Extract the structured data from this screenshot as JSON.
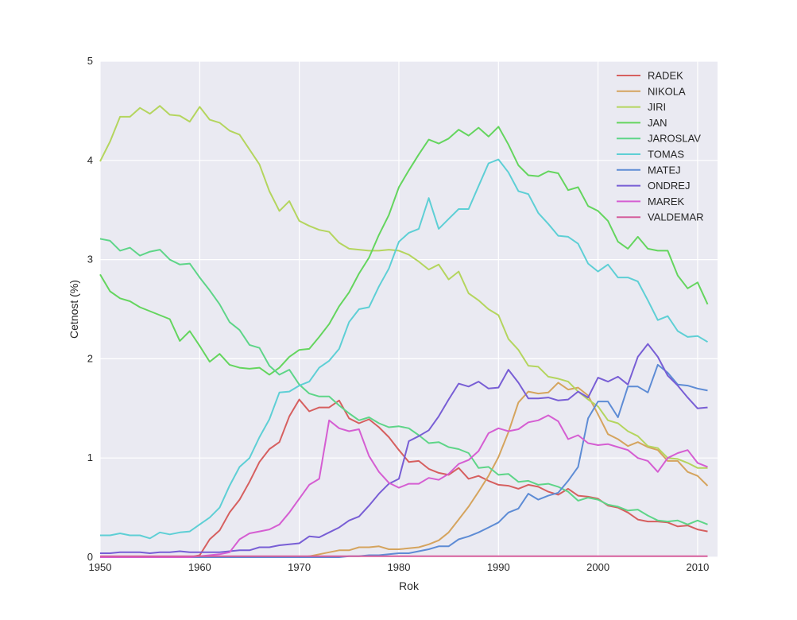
{
  "chart_data": {
    "type": "line",
    "title": "",
    "xlabel": "Rok",
    "ylabel": "Cetnost (%)",
    "xlim": [
      1950,
      2012
    ],
    "ylim": [
      0,
      5
    ],
    "xticks": [
      1950,
      1960,
      1970,
      1980,
      1990,
      2000,
      2010
    ],
    "yticks": [
      0,
      1,
      2,
      3,
      4,
      5
    ],
    "grid": true,
    "legend_position": "top-right",
    "background": "#EAEAF2",
    "grid_color": "#FFFFFF",
    "x": [
      1950,
      1951,
      1952,
      1953,
      1954,
      1955,
      1956,
      1957,
      1958,
      1959,
      1960,
      1961,
      1962,
      1963,
      1964,
      1965,
      1966,
      1967,
      1968,
      1969,
      1970,
      1971,
      1972,
      1973,
      1974,
      1975,
      1976,
      1977,
      1978,
      1979,
      1980,
      1981,
      1982,
      1983,
      1984,
      1985,
      1986,
      1987,
      1988,
      1989,
      1990,
      1991,
      1992,
      1993,
      1994,
      1995,
      1996,
      1997,
      1998,
      1999,
      2000,
      2001,
      2002,
      2003,
      2004,
      2005,
      2006,
      2007,
      2008,
      2009,
      2010,
      2011
    ],
    "series": [
      {
        "name": "RADEK",
        "color": "#D65F5F",
        "values": [
          0,
          0,
          0,
          0,
          0,
          0,
          0,
          0,
          0,
          0,
          0.02,
          0.18,
          0.27,
          0.45,
          0.58,
          0.76,
          0.96,
          1.09,
          1.16,
          1.42,
          1.59,
          1.47,
          1.51,
          1.51,
          1.58,
          1.4,
          1.35,
          1.39,
          1.31,
          1.21,
          1.08,
          0.96,
          0.97,
          0.89,
          0.85,
          0.83,
          0.9,
          0.79,
          0.82,
          0.77,
          0.73,
          0.72,
          0.69,
          0.73,
          0.71,
          0.66,
          0.63,
          0.69,
          0.62,
          0.61,
          0.59,
          0.52,
          0.5,
          0.45,
          0.38,
          0.36,
          0.36,
          0.35,
          0.31,
          0.32,
          0.28,
          0.26
        ]
      },
      {
        "name": "NIKOLA",
        "color": "#D5A45E",
        "values": [
          0,
          0,
          0,
          0,
          0,
          0,
          0,
          0,
          0,
          0,
          0,
          0,
          0,
          0,
          0,
          0,
          0,
          0,
          0,
          0,
          0,
          0.01,
          0.03,
          0.05,
          0.07,
          0.07,
          0.1,
          0.1,
          0.11,
          0.08,
          0.08,
          0.09,
          0.1,
          0.13,
          0.17,
          0.25,
          0.38,
          0.51,
          0.66,
          0.82,
          1.01,
          1.26,
          1.56,
          1.67,
          1.65,
          1.66,
          1.76,
          1.69,
          1.71,
          1.63,
          1.44,
          1.24,
          1.19,
          1.12,
          1.16,
          1.11,
          1.08,
          0.97,
          0.97,
          0.86,
          0.82,
          0.72
        ]
      },
      {
        "name": "JIRI",
        "color": "#B4D55E",
        "values": [
          3.99,
          4.19,
          4.44,
          4.44,
          4.53,
          4.47,
          4.55,
          4.46,
          4.45,
          4.39,
          4.54,
          4.41,
          4.38,
          4.3,
          4.26,
          4.11,
          3.96,
          3.69,
          3.49,
          3.59,
          3.39,
          3.34,
          3.3,
          3.28,
          3.17,
          3.11,
          3.1,
          3.09,
          3.09,
          3.1,
          3.09,
          3.05,
          2.98,
          2.9,
          2.95,
          2.8,
          2.88,
          2.66,
          2.59,
          2.5,
          2.44,
          2.2,
          2.09,
          1.93,
          1.92,
          1.82,
          1.8,
          1.77,
          1.67,
          1.59,
          1.52,
          1.38,
          1.35,
          1.27,
          1.22,
          1.12,
          1.1,
          1.0,
          0.99,
          0.95,
          0.9,
          0.9
        ]
      },
      {
        "name": "JAN",
        "color": "#64D55E",
        "values": [
          2.85,
          2.68,
          2.61,
          2.58,
          2.52,
          2.48,
          2.44,
          2.4,
          2.18,
          2.28,
          2.13,
          1.97,
          2.05,
          1.94,
          1.91,
          1.9,
          1.91,
          1.84,
          1.91,
          2.02,
          2.09,
          2.1,
          2.22,
          2.35,
          2.53,
          2.67,
          2.86,
          3.02,
          3.25,
          3.45,
          3.73,
          3.9,
          4.06,
          4.21,
          4.17,
          4.22,
          4.31,
          4.25,
          4.33,
          4.24,
          4.34,
          4.16,
          3.95,
          3.85,
          3.84,
          3.89,
          3.87,
          3.7,
          3.73,
          3.54,
          3.49,
          3.39,
          3.18,
          3.11,
          3.23,
          3.11,
          3.09,
          3.09,
          2.84,
          2.71,
          2.77,
          2.55
        ]
      },
      {
        "name": "JAROSLAV",
        "color": "#5ED588",
        "values": [
          3.21,
          3.19,
          3.09,
          3.12,
          3.04,
          3.08,
          3.1,
          3.0,
          2.95,
          2.96,
          2.82,
          2.69,
          2.55,
          2.37,
          2.29,
          2.14,
          2.11,
          1.93,
          1.84,
          1.89,
          1.74,
          1.65,
          1.62,
          1.62,
          1.53,
          1.45,
          1.38,
          1.41,
          1.35,
          1.31,
          1.32,
          1.3,
          1.23,
          1.15,
          1.16,
          1.11,
          1.09,
          1.05,
          0.9,
          0.91,
          0.83,
          0.84,
          0.76,
          0.77,
          0.73,
          0.74,
          0.71,
          0.66,
          0.57,
          0.6,
          0.58,
          0.53,
          0.51,
          0.47,
          0.48,
          0.42,
          0.37,
          0.36,
          0.37,
          0.33,
          0.37,
          0.33
        ]
      },
      {
        "name": "TOMAS",
        "color": "#5ECFD5",
        "values": [
          0.22,
          0.22,
          0.24,
          0.22,
          0.22,
          0.19,
          0.25,
          0.23,
          0.25,
          0.26,
          0.33,
          0.4,
          0.5,
          0.72,
          0.91,
          1.0,
          1.21,
          1.39,
          1.66,
          1.67,
          1.73,
          1.77,
          1.91,
          1.98,
          2.1,
          2.37,
          2.5,
          2.52,
          2.73,
          2.91,
          3.18,
          3.27,
          3.31,
          3.62,
          3.31,
          3.41,
          3.51,
          3.51,
          3.74,
          3.97,
          4.01,
          3.88,
          3.69,
          3.66,
          3.47,
          3.36,
          3.24,
          3.23,
          3.16,
          2.96,
          2.88,
          2.95,
          2.82,
          2.82,
          2.78,
          2.59,
          2.39,
          2.43,
          2.28,
          2.22,
          2.23,
          2.17
        ]
      },
      {
        "name": "MATEJ",
        "color": "#5E8CD5",
        "values": [
          0,
          0,
          0,
          0,
          0,
          0,
          0,
          0,
          0,
          0,
          0,
          0,
          0,
          0,
          0,
          0,
          0,
          0,
          0,
          0,
          0,
          0,
          0,
          0,
          0,
          0.01,
          0.01,
          0.02,
          0.02,
          0.03,
          0.04,
          0.04,
          0.06,
          0.08,
          0.11,
          0.11,
          0.18,
          0.21,
          0.25,
          0.3,
          0.35,
          0.45,
          0.49,
          0.64,
          0.58,
          0.62,
          0.65,
          0.77,
          0.91,
          1.4,
          1.57,
          1.57,
          1.41,
          1.72,
          1.72,
          1.66,
          1.94,
          1.86,
          1.74,
          1.73,
          1.7,
          1.68
        ]
      },
      {
        "name": "ONDREJ",
        "color": "#785ED5",
        "values": [
          0.04,
          0.04,
          0.05,
          0.05,
          0.05,
          0.04,
          0.05,
          0.05,
          0.06,
          0.05,
          0.05,
          0.05,
          0.05,
          0.06,
          0.07,
          0.07,
          0.1,
          0.1,
          0.12,
          0.13,
          0.14,
          0.21,
          0.2,
          0.25,
          0.3,
          0.37,
          0.41,
          0.52,
          0.64,
          0.74,
          0.79,
          1.17,
          1.22,
          1.28,
          1.42,
          1.59,
          1.75,
          1.72,
          1.77,
          1.7,
          1.71,
          1.89,
          1.76,
          1.6,
          1.6,
          1.61,
          1.58,
          1.59,
          1.67,
          1.61,
          1.81,
          1.77,
          1.82,
          1.74,
          2.02,
          2.15,
          2.02,
          1.83,
          1.73,
          1.61,
          1.5,
          1.51
        ]
      },
      {
        "name": "MAREK",
        "color": "#D55ED2",
        "values": [
          0,
          0,
          0,
          0,
          0,
          0,
          0,
          0,
          0,
          0,
          0.01,
          0.02,
          0.03,
          0.05,
          0.18,
          0.24,
          0.26,
          0.28,
          0.33,
          0.45,
          0.59,
          0.73,
          0.79,
          1.38,
          1.3,
          1.27,
          1.29,
          1.02,
          0.86,
          0.75,
          0.7,
          0.74,
          0.74,
          0.8,
          0.78,
          0.84,
          0.94,
          0.98,
          1.07,
          1.25,
          1.3,
          1.27,
          1.29,
          1.36,
          1.38,
          1.43,
          1.37,
          1.19,
          1.23,
          1.15,
          1.13,
          1.14,
          1.11,
          1.08,
          1.0,
          0.97,
          0.86,
          1.0,
          1.05,
          1.08,
          0.95,
          0.91
        ]
      },
      {
        "name": "VALDEMAR",
        "color": "#D55E9C",
        "values": [
          0.01,
          0.01,
          0.01,
          0.01,
          0.01,
          0.01,
          0.01,
          0.01,
          0.01,
          0.01,
          0.01,
          0.01,
          0.01,
          0.01,
          0.01,
          0.01,
          0.01,
          0.01,
          0.01,
          0.01,
          0.01,
          0.01,
          0.01,
          0.01,
          0.01,
          0.01,
          0.01,
          0.01,
          0.01,
          0.01,
          0.01,
          0.01,
          0.01,
          0.01,
          0.01,
          0.01,
          0.01,
          0.01,
          0.01,
          0.01,
          0.01,
          0.01,
          0.01,
          0.01,
          0.01,
          0.01,
          0.01,
          0.01,
          0.01,
          0.01,
          0.01,
          0.01,
          0.01,
          0.01,
          0.01,
          0.01,
          0.01,
          0.01,
          0.01,
          0.01,
          0.01,
          0.01
        ]
      }
    ]
  }
}
